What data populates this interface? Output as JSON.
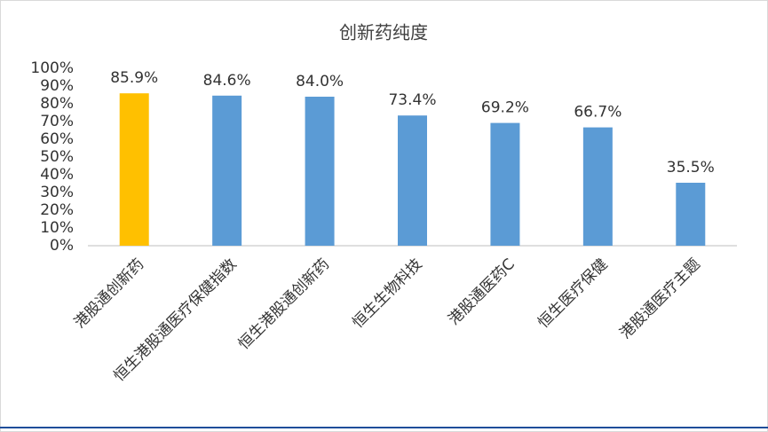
{
  "chart_data": {
    "type": "bar",
    "title": "创新药纯度",
    "categories": [
      "港股通创新药",
      "恒生港股通医疗保健指数",
      "恒生港股通创新药",
      "恒生生物科技",
      "港股通医药C",
      "恒生医疗保健",
      "港股通医疗主题"
    ],
    "values": [
      85.9,
      84.6,
      84.0,
      73.4,
      69.2,
      66.7,
      35.5
    ],
    "value_labels": [
      "85.9%",
      "84.6%",
      "84.0%",
      "73.4%",
      "69.2%",
      "66.7%",
      "35.5%"
    ],
    "colors": [
      "#ffc000",
      "#5b9bd5",
      "#5b9bd5",
      "#5b9bd5",
      "#5b9bd5",
      "#5b9bd5",
      "#5b9bd5"
    ],
    "ylim": [
      0,
      100
    ],
    "yticks": [
      {
        "value": 0,
        "label": "0%"
      },
      {
        "value": 10,
        "label": "10%"
      },
      {
        "value": 20,
        "label": "20%"
      },
      {
        "value": 30,
        "label": "30%"
      },
      {
        "value": 40,
        "label": "40%"
      },
      {
        "value": 50,
        "label": "50%"
      },
      {
        "value": 60,
        "label": "60%"
      },
      {
        "value": 70,
        "label": "70%"
      },
      {
        "value": 80,
        "label": "80%"
      },
      {
        "value": 90,
        "label": "90%"
      },
      {
        "value": 100,
        "label": "100%"
      }
    ],
    "grid": false
  }
}
